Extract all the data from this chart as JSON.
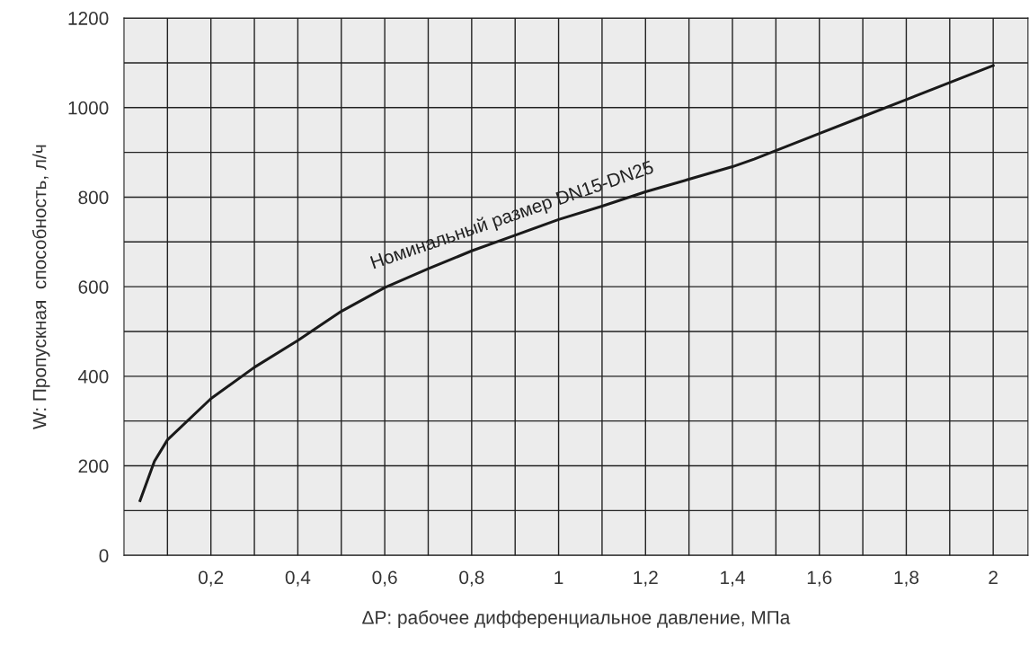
{
  "chart_data": {
    "type": "line",
    "xlabel": "ΔP: рабочее дифференциальное давление, МПа",
    "ylabel": "W: Пропускная  способность, л/ч",
    "x": [
      0.037,
      0.07,
      0.1,
      0.2,
      0.3,
      0.4,
      0.5,
      0.6,
      0.7,
      0.8,
      0.9,
      1.0,
      1.1,
      1.2,
      1.3,
      1.4,
      1.45,
      1.5,
      1.6,
      1.7,
      1.8,
      1.9,
      2.0
    ],
    "series": [
      {
        "name": "Номинальный размер DN15-DN25",
        "color": "#1a1a1a",
        "values": [
          122,
          210,
          258,
          350,
          420,
          480,
          545,
          598,
          640,
          680,
          715,
          750,
          780,
          812,
          840,
          868,
          885,
          904,
          942,
          980,
          1018,
          1056,
          1094
        ]
      }
    ],
    "xlim": [
      0,
      2.08
    ],
    "xticks": [
      {
        "value": 0.1,
        "label": null
      },
      {
        "value": 0.2,
        "label": "0,2"
      },
      {
        "value": 0.3,
        "label": null
      },
      {
        "value": 0.4,
        "label": "0,4"
      },
      {
        "value": 0.5,
        "label": null
      },
      {
        "value": 0.6,
        "label": "0,6"
      },
      {
        "value": 0.7,
        "label": null
      },
      {
        "value": 0.8,
        "label": "0,8"
      },
      {
        "value": 0.9,
        "label": null
      },
      {
        "value": 1.0,
        "label": "1"
      },
      {
        "value": 1.1,
        "label": null
      },
      {
        "value": 1.2,
        "label": "1,2"
      },
      {
        "value": 1.3,
        "label": null
      },
      {
        "value": 1.4,
        "label": "1,4"
      },
      {
        "value": 1.5,
        "label": null
      },
      {
        "value": 1.6,
        "label": "1,6"
      },
      {
        "value": 1.7,
        "label": null
      },
      {
        "value": 1.8,
        "label": "1,8"
      },
      {
        "value": 1.9,
        "label": null
      },
      {
        "value": 2.0,
        "label": "2"
      }
    ],
    "ylim": [
      0,
      1200
    ],
    "yticks": [
      0,
      {
        "value": 100,
        "label": null
      },
      200,
      {
        "value": 300,
        "label": null
      },
      400,
      {
        "value": 500,
        "label": null
      },
      600,
      {
        "value": 700,
        "label": null
      },
      800,
      {
        "value": 900,
        "label": null
      },
      1000,
      {
        "value": 1100,
        "label": null
      },
      1200
    ],
    "grid": true,
    "legend": false,
    "marker": "none",
    "line_style": "solid"
  }
}
